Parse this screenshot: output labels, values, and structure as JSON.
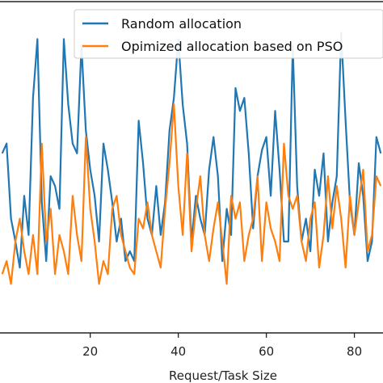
{
  "chart_data": {
    "type": "line",
    "xlabel": "Request/Task Size",
    "ylabel": "",
    "title": "",
    "xlim": [
      -0.5,
      86.5
    ],
    "ylim": [
      0,
      100
    ],
    "x_ticks": [
      20,
      40,
      60,
      80
    ],
    "grid": false,
    "legend_position": "top-right",
    "series": [
      {
        "name": "Random allocation",
        "color": "#1f77b4",
        "values": [
          55,
          58,
          35,
          28,
          20,
          42,
          30,
          72,
          90,
          40,
          22,
          48,
          45,
          38,
          90,
          70,
          58,
          55,
          88,
          62,
          50,
          42,
          28,
          58,
          50,
          40,
          28,
          35,
          22,
          25,
          22,
          65,
          52,
          35,
          30,
          45,
          30,
          40,
          62,
          72,
          90,
          70,
          58,
          28,
          42,
          35,
          30,
          50,
          60,
          48,
          22,
          38,
          30,
          75,
          68,
          72,
          55,
          32,
          48,
          56,
          60,
          42,
          68,
          50,
          28,
          28,
          88,
          45,
          28,
          35,
          25,
          50,
          42,
          55,
          28,
          40,
          48,
          92,
          65,
          40,
          30,
          52,
          42,
          22,
          28,
          60,
          55
        ]
      },
      {
        "name": "Opimized allocation based on PSO",
        "color": "#ff7f0e",
        "values": [
          18,
          22,
          15,
          28,
          35,
          25,
          18,
          30,
          18,
          58,
          28,
          38,
          18,
          30,
          25,
          18,
          42,
          30,
          22,
          60,
          38,
          28,
          15,
          22,
          18,
          38,
          42,
          30,
          25,
          20,
          18,
          35,
          32,
          40,
          30,
          25,
          20,
          38,
          52,
          70,
          45,
          30,
          55,
          25,
          38,
          48,
          30,
          22,
          32,
          40,
          28,
          15,
          42,
          35,
          40,
          22,
          30,
          35,
          48,
          22,
          40,
          32,
          28,
          22,
          58,
          42,
          38,
          42,
          28,
          22,
          35,
          40,
          20,
          30,
          48,
          32,
          45,
          35,
          20,
          42,
          30,
          40,
          50,
          25,
          30,
          48,
          45
        ]
      }
    ]
  }
}
